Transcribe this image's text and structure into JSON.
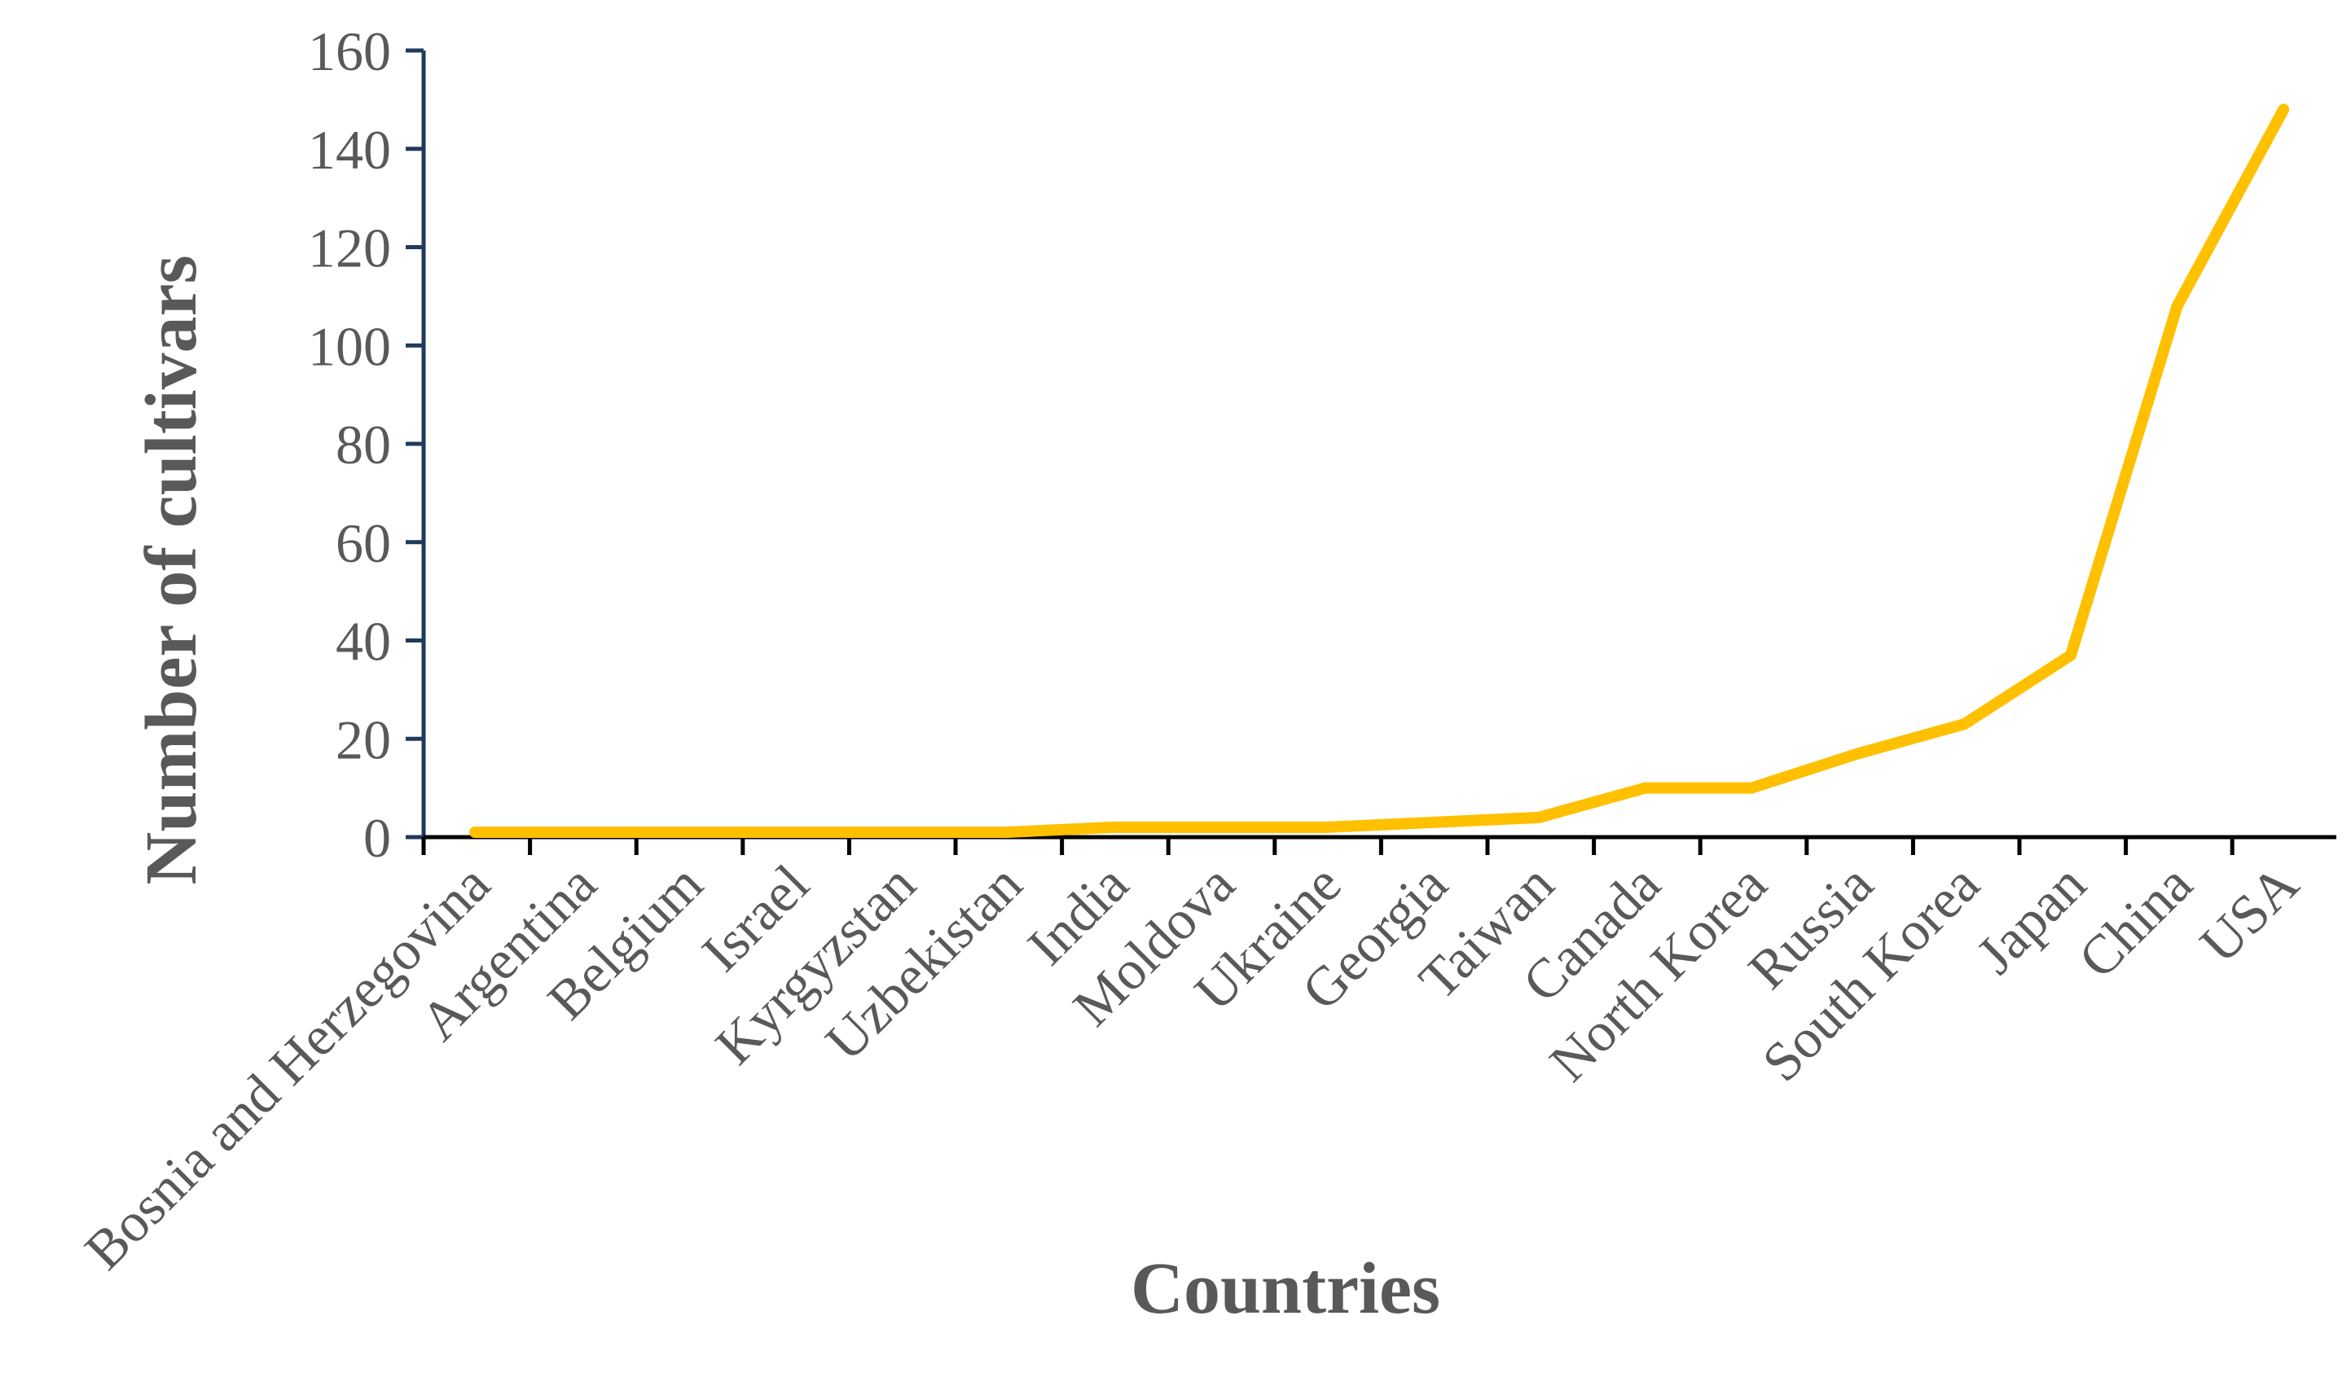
{
  "chart_data": {
    "type": "line",
    "title": "",
    "xlabel": "Countries",
    "ylabel": "Number of cultivars",
    "categories": [
      "Bosnia and Herzegovina",
      "Argentina",
      "Belgium",
      "Israel",
      "Kyrgyzstan",
      "Uzbekistan",
      "India",
      "Moldova",
      "Ukraine",
      "Georgia",
      "Taiwan",
      "Canada",
      "North Korea",
      "Russia",
      "South Korea",
      "Japan",
      "China",
      "USA"
    ],
    "series": [
      {
        "values": [
          1,
          1,
          1,
          1,
          1,
          1,
          2,
          2,
          2,
          3,
          4,
          10,
          10,
          17,
          23,
          37,
          108,
          148
        ]
      }
    ],
    "ylim": [
      0,
      160
    ],
    "yticks": [
      0,
      20,
      40,
      60,
      80,
      100,
      120,
      140,
      160
    ],
    "grid": false,
    "legend": "none",
    "colors": {
      "line": "#FFC000",
      "axis": "#1F3A5A",
      "text": "#595959"
    }
  }
}
